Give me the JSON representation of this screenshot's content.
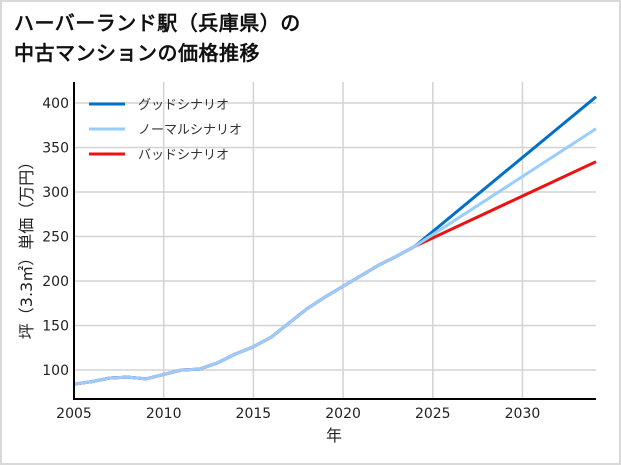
{
  "title": {
    "line1": "ハーバーランド駅（兵庫県）の",
    "line2": "中古マンションの価格推移"
  },
  "chart_data": {
    "type": "line",
    "title": "ハーバーランド駅（兵庫県）の中古マンションの価格推移",
    "xlabel": "年",
    "ylabel": "坪（3.3㎡）単価（万円）",
    "xlim": [
      2005,
      2034.1
    ],
    "ylim": [
      67.4,
      423.6
    ],
    "xticks": [
      2005,
      2010,
      2015,
      2020,
      2025,
      2030
    ],
    "yticks": [
      100,
      150,
      200,
      250,
      300,
      350,
      400
    ],
    "grid": true,
    "legend_position": "upper left",
    "series": [
      {
        "name": "グッドシナリオ",
        "color": "#0070c8",
        "x": [
          2005,
          2006,
          2007,
          2008,
          2009,
          2010,
          2011,
          2012,
          2013,
          2014,
          2015,
          2016,
          2017,
          2018,
          2019,
          2020,
          2021,
          2022,
          2023,
          2024,
          2034.1
        ],
        "values": [
          84,
          87,
          91,
          92,
          90,
          95,
          100,
          101,
          108,
          118,
          126,
          137,
          153,
          169,
          182,
          194,
          206,
          218,
          228,
          239,
          407
        ]
      },
      {
        "name": "ノーマルシナリオ",
        "color": "#99ccff",
        "x": [
          2005,
          2006,
          2007,
          2008,
          2009,
          2010,
          2011,
          2012,
          2013,
          2014,
          2015,
          2016,
          2017,
          2018,
          2019,
          2020,
          2021,
          2022,
          2023,
          2024,
          2034.1
        ],
        "values": [
          84,
          87,
          91,
          92,
          90,
          95,
          100,
          101,
          108,
          118,
          126,
          137,
          153,
          169,
          182,
          194,
          206,
          218,
          228,
          239,
          371
        ]
      },
      {
        "name": "バッドシナリオ",
        "color": "#ee1111",
        "x": [
          2005,
          2006,
          2007,
          2008,
          2009,
          2010,
          2011,
          2012,
          2013,
          2014,
          2015,
          2016,
          2017,
          2018,
          2019,
          2020,
          2021,
          2022,
          2023,
          2024,
          2034.1
        ],
        "values": [
          84,
          87,
          91,
          92,
          90,
          95,
          100,
          101,
          108,
          118,
          126,
          137,
          153,
          169,
          182,
          194,
          206,
          218,
          228,
          239,
          334
        ]
      }
    ]
  }
}
